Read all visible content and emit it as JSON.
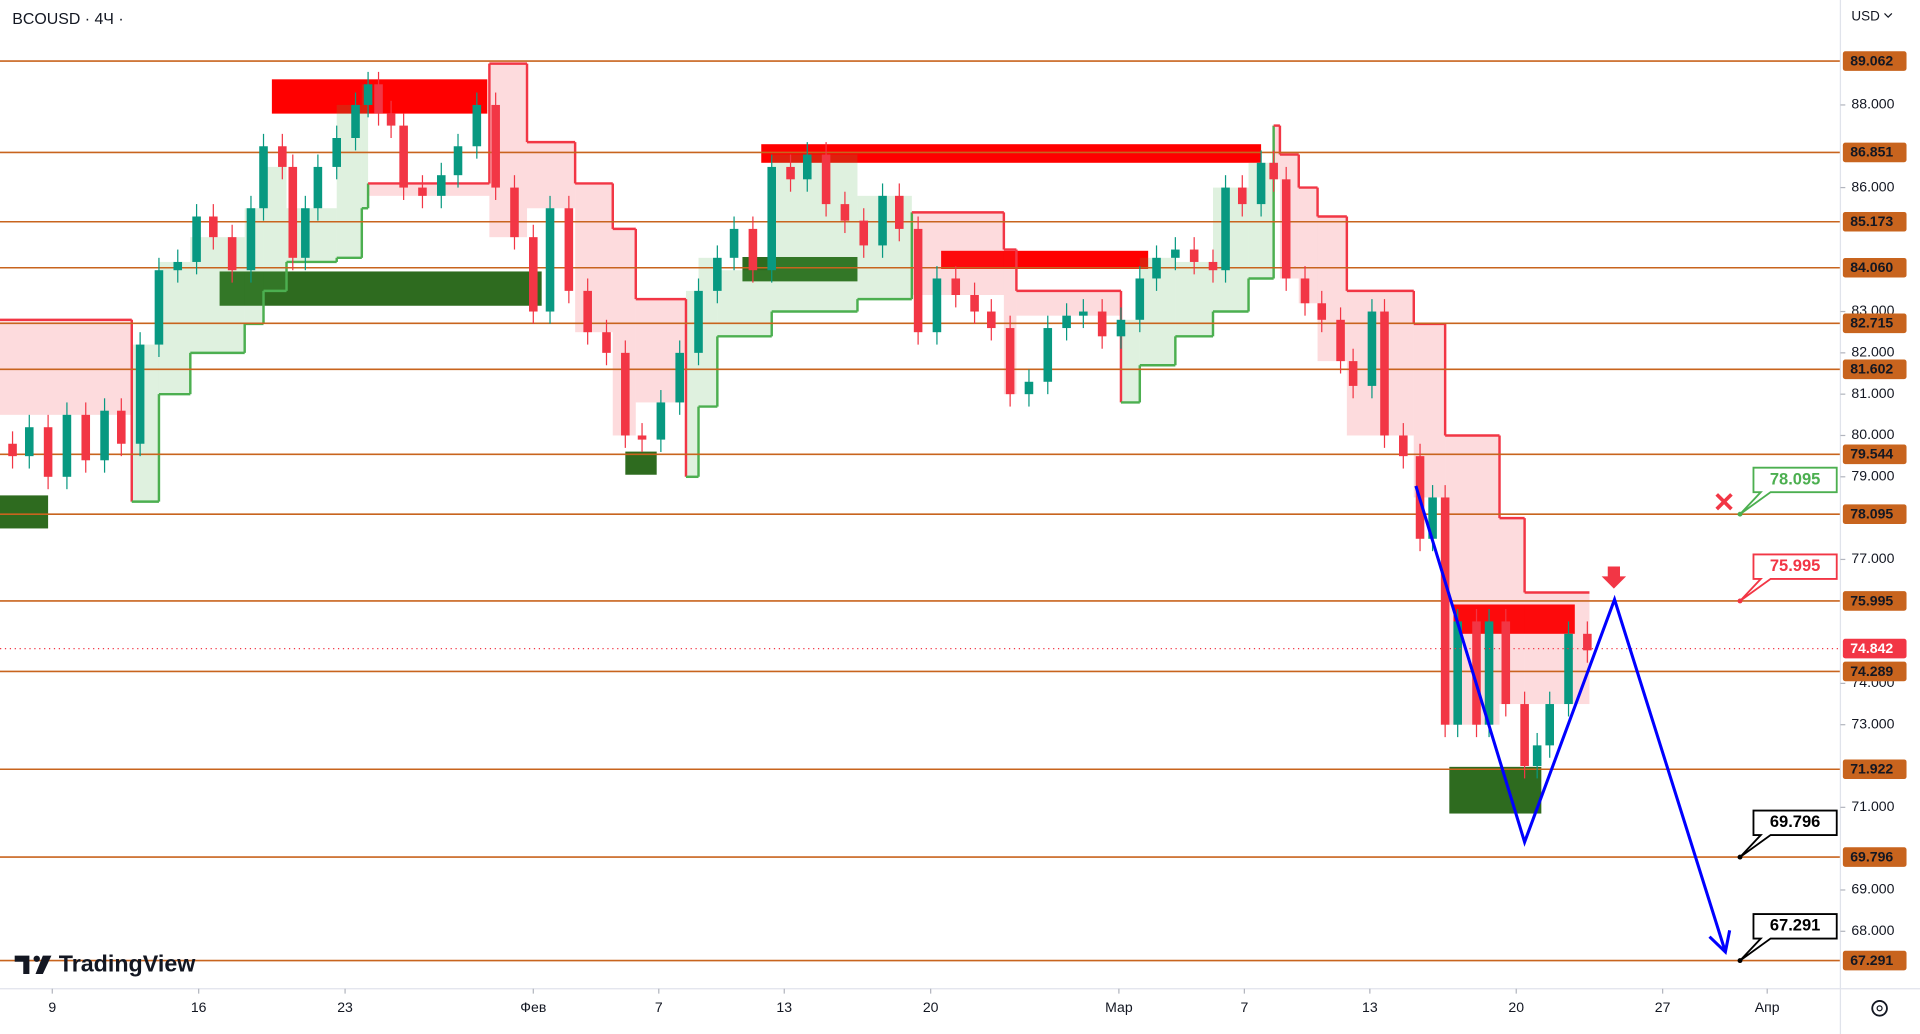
{
  "chart_data": {
    "type": "candlestick",
    "title": "BCOUSD · 4Ч ·",
    "currency": "USD",
    "watermark": "TradingView",
    "xlim": [
      -2.5,
      85.5
    ],
    "ylim": [
      66.61,
      90.54
    ],
    "xticks": [
      {
        "value": 0,
        "label": "9"
      },
      {
        "value": 7,
        "label": "16"
      },
      {
        "value": 14,
        "label": "23"
      },
      {
        "value": 23,
        "label": "Фев"
      },
      {
        "value": 29,
        "label": "7"
      },
      {
        "value": 35,
        "label": "13"
      },
      {
        "value": 42,
        "label": "20"
      },
      {
        "value": 51,
        "label": "Мар"
      },
      {
        "value": 57,
        "label": "7"
      },
      {
        "value": 63,
        "label": "13"
      },
      {
        "value": 70,
        "label": "20"
      },
      {
        "value": 77,
        "label": "27"
      },
      {
        "value": 82,
        "label": "Апр"
      }
    ],
    "yticks": [
      {
        "value": 88,
        "label": "88.000"
      },
      {
        "value": 86,
        "label": "86.000"
      },
      {
        "value": 83,
        "label": "83.000"
      },
      {
        "value": 82,
        "label": "82.000"
      },
      {
        "value": 81,
        "label": "81.000"
      },
      {
        "value": 80,
        "label": "80.000"
      },
      {
        "value": 79,
        "label": "79.000"
      },
      {
        "value": 77,
        "label": "77.000"
      },
      {
        "value": 74,
        "label": "74.000"
      },
      {
        "value": 73,
        "label": "73.000"
      },
      {
        "value": 71,
        "label": "71.000"
      },
      {
        "value": 69,
        "label": "69.000"
      },
      {
        "value": 68,
        "label": "68.000"
      }
    ],
    "up_color": "#089981",
    "down_color": "#f23645",
    "x": [
      -1.9,
      -1.1,
      -0.2,
      0.7,
      1.6,
      2.5,
      3.3,
      4.2,
      5.1,
      6.0,
      6.9,
      7.7,
      8.6,
      9.5,
      10.1,
      11.0,
      11.5,
      12.1,
      12.7,
      13.6,
      14.5,
      15.1,
      15.6,
      16.2,
      16.8,
      17.7,
      18.6,
      19.4,
      20.3,
      21.2,
      22.1,
      23.0,
      23.8,
      24.7,
      25.6,
      26.5,
      27.4,
      28.2,
      29.1,
      30.0,
      30.9,
      31.8,
      32.6,
      33.5,
      34.4,
      35.3,
      36.1,
      37.0,
      37.9,
      38.8,
      39.7,
      40.5,
      41.4,
      42.3,
      43.2,
      44.1,
      44.9,
      45.8,
      46.7,
      47.6,
      48.5,
      49.3,
      50.2,
      51.1,
      52.0,
      52.8,
      53.7,
      54.6,
      55.5,
      56.1,
      56.9,
      57.8,
      58.4,
      59.0,
      59.9,
      60.7,
      61.6,
      62.2,
      63.1,
      63.7,
      64.6,
      65.4,
      66.0,
      66.6,
      67.2,
      68.1,
      68.7,
      69.5,
      70.4,
      71.0,
      71.6,
      72.5,
      73.4
    ],
    "open": [
      79.8,
      79.5,
      80.2,
      79.0,
      80.5,
      79.4,
      80.6,
      79.8,
      82.2,
      84.0,
      84.2,
      85.3,
      84.8,
      84.0,
      85.5,
      87.0,
      86.5,
      84.3,
      85.5,
      86.5,
      87.2,
      88.0,
      88.5,
      87.8,
      87.5,
      86.0,
      85.8,
      86.3,
      87.0,
      88.0,
      86.0,
      84.8,
      83.0,
      85.5,
      83.5,
      82.5,
      82.0,
      80.0,
      79.9,
      80.8,
      82.0,
      83.5,
      84.3,
      85.0,
      84.0,
      86.5,
      86.2,
      86.8,
      85.6,
      85.2,
      84.6,
      85.8,
      85.0,
      82.5,
      83.8,
      83.4,
      83.0,
      82.6,
      81.0,
      81.3,
      82.6,
      82.9,
      83.0,
      82.4,
      82.8,
      83.8,
      84.3,
      84.5,
      84.2,
      84.0,
      86.0,
      85.6,
      86.6,
      86.2,
      83.8,
      83.2,
      82.8,
      81.8,
      81.2,
      83.0,
      80.0,
      79.5,
      77.5,
      78.5,
      73.0,
      75.5,
      73.0,
      75.5,
      73.5,
      72.0,
      72.5,
      73.5,
      75.2
    ],
    "high": [
      80.1,
      80.5,
      80.5,
      80.8,
      80.8,
      80.9,
      80.9,
      82.5,
      84.3,
      84.5,
      85.6,
      85.6,
      85.1,
      85.8,
      87.3,
      87.3,
      86.8,
      85.8,
      86.8,
      87.5,
      88.3,
      88.8,
      88.8,
      88.1,
      87.8,
      86.3,
      86.6,
      87.3,
      88.3,
      88.3,
      86.3,
      85.1,
      85.8,
      85.8,
      83.8,
      82.8,
      82.3,
      80.3,
      81.1,
      82.3,
      83.8,
      84.6,
      85.3,
      85.3,
      86.8,
      86.8,
      87.1,
      87.1,
      85.9,
      85.5,
      86.1,
      86.1,
      85.3,
      84.1,
      84.1,
      83.7,
      83.3,
      82.9,
      81.6,
      82.9,
      83.2,
      83.3,
      83.3,
      83.1,
      84.1,
      84.6,
      84.8,
      84.8,
      84.5,
      86.3,
      86.3,
      86.9,
      86.9,
      86.5,
      84.1,
      83.5,
      83.1,
      82.1,
      83.3,
      83.3,
      80.3,
      79.8,
      78.8,
      78.8,
      75.8,
      75.8,
      75.8,
      75.8,
      73.8,
      72.8,
      73.8,
      75.5,
      75.5
    ],
    "low": [
      79.2,
      79.2,
      78.7,
      78.7,
      79.1,
      79.1,
      79.5,
      79.5,
      81.9,
      83.7,
      83.9,
      84.5,
      83.7,
      83.7,
      85.2,
      86.2,
      84.0,
      84.0,
      85.2,
      86.2,
      86.9,
      87.7,
      87.5,
      87.2,
      85.7,
      85.5,
      85.5,
      86.0,
      86.7,
      85.7,
      84.5,
      82.7,
      82.7,
      83.2,
      82.2,
      81.7,
      79.7,
      79.6,
      79.6,
      80.5,
      81.7,
      83.2,
      84.0,
      83.7,
      83.7,
      85.9,
      85.9,
      85.3,
      84.9,
      84.3,
      84.3,
      84.7,
      82.2,
      82.2,
      83.1,
      82.7,
      82.3,
      80.7,
      80.7,
      81.0,
      82.3,
      82.6,
      82.1,
      82.1,
      82.5,
      83.5,
      84.0,
      83.9,
      83.7,
      83.7,
      85.3,
      85.3,
      85.9,
      83.5,
      82.9,
      82.5,
      81.5,
      80.9,
      80.9,
      79.7,
      79.2,
      77.2,
      77.2,
      72.7,
      72.7,
      72.7,
      72.7,
      73.2,
      71.7,
      71.7,
      72.2,
      73.2,
      74.5
    ],
    "close": [
      79.5,
      80.2,
      79.0,
      80.5,
      79.4,
      80.6,
      79.8,
      82.2,
      84.0,
      84.2,
      85.3,
      84.8,
      84.0,
      85.5,
      87.0,
      86.5,
      84.3,
      85.5,
      86.5,
      87.2,
      88.0,
      88.5,
      87.8,
      87.5,
      86.0,
      85.8,
      86.3,
      87.0,
      88.0,
      86.0,
      84.8,
      83.0,
      85.5,
      83.5,
      82.5,
      82.0,
      80.0,
      79.9,
      80.8,
      82.0,
      83.5,
      84.3,
      85.0,
      84.0,
      86.5,
      86.2,
      86.8,
      85.6,
      85.2,
      84.6,
      85.8,
      85.0,
      82.5,
      83.8,
      83.4,
      83.0,
      82.6,
      81.0,
      81.3,
      82.6,
      82.9,
      83.0,
      82.4,
      82.8,
      83.8,
      84.3,
      84.5,
      84.2,
      84.0,
      86.0,
      85.6,
      86.6,
      86.2,
      83.8,
      83.2,
      82.8,
      81.8,
      81.2,
      83.0,
      80.0,
      79.5,
      77.5,
      78.5,
      73.0,
      75.5,
      73.0,
      75.5,
      73.5,
      72.0,
      72.5,
      73.5,
      75.2,
      74.8
    ],
    "last": 74.842,
    "last_color": "#f23645",
    "level_color": "#c8641e",
    "levels": [
      89.062,
      86.851,
      85.173,
      {
        "value": 84.06,
        "label": "84.060"
      },
      82.715,
      81.602,
      79.544,
      78.095,
      75.995,
      74.289,
      71.922,
      69.796,
      67.291
    ],
    "zones": [
      {
        "x": [
          10.5,
          20.8
        ],
        "y": [
          87.79,
          88.62
        ],
        "color": "#ff0000"
      },
      {
        "x": [
          33.9,
          57.8
        ],
        "y": [
          86.6,
          87.05
        ],
        "color": "#ff0000"
      },
      {
        "x": [
          42.5,
          52.4
        ],
        "y": [
          84.03,
          84.47
        ],
        "color": "#ff0000"
      },
      {
        "x": [
          67.0,
          72.8
        ],
        "y": [
          75.2,
          75.91
        ],
        "color": "#ff0000"
      },
      {
        "x": [
          -2.5,
          -0.2
        ],
        "y": [
          77.75,
          78.55
        ],
        "color": "#2e6b1f"
      },
      {
        "x": [
          8.0,
          23.4
        ],
        "y": [
          83.14,
          83.97
        ],
        "color": "#2e6b1f"
      },
      {
        "x": [
          27.4,
          28.9
        ],
        "y": [
          79.05,
          79.61
        ],
        "color": "#2e6b1f"
      },
      {
        "x": [
          33.0,
          38.5
        ],
        "y": [
          83.73,
          84.32
        ],
        "color": "#2e6b1f"
      },
      {
        "x": [
          66.8,
          71.2
        ],
        "y": [
          70.85,
          71.98
        ],
        "color": "#2e6b1f"
      }
    ],
    "stop": {
      "x": [
        -2.5,
        3.8,
        5.1,
        6.6,
        9.2,
        10.1,
        11.2,
        13.6,
        14.8,
        15.1,
        20.9,
        22.7,
        25.0,
        26.8,
        27.9,
        30.3,
        30.9,
        31.8,
        34.4,
        38.5,
        41.1,
        45.5,
        46.1,
        51.1,
        52.0,
        53.7,
        55.5,
        57.2,
        58.4,
        58.7,
        59.6,
        60.5,
        61.9,
        65.1,
        66.6,
        69.2,
        70.4,
        73.5
      ],
      "values": [
        82.8,
        78.4,
        81.0,
        82.0,
        82.7,
        83.5,
        84.2,
        84.3,
        85.5,
        86.1,
        89.0,
        87.1,
        86.1,
        85.0,
        83.3,
        79.0,
        80.7,
        82.4,
        83.0,
        83.3,
        85.4,
        84.5,
        83.5,
        80.8,
        81.7,
        82.4,
        83.0,
        83.8,
        87.5,
        86.8,
        86.0,
        85.3,
        83.5,
        82.7,
        80.0,
        78.0,
        76.2,
        76.2
      ],
      "up_color": "#4caf50",
      "down_color": "#f23645"
    },
    "projection": {
      "x": [
        65.2,
        70.4,
        74.7,
        80.0
      ],
      "values": [
        78.78,
        70.16,
        76.03,
        67.5
      ],
      "color": "#0000ff"
    },
    "callouts": [
      {
        "value": 78.095,
        "color": "#4caf50"
      },
      {
        "value": 75.995,
        "color": "#f23645"
      },
      {
        "value": 69.796,
        "color": "#000000"
      },
      {
        "value": 67.291,
        "color": "#000000"
      }
    ]
  }
}
